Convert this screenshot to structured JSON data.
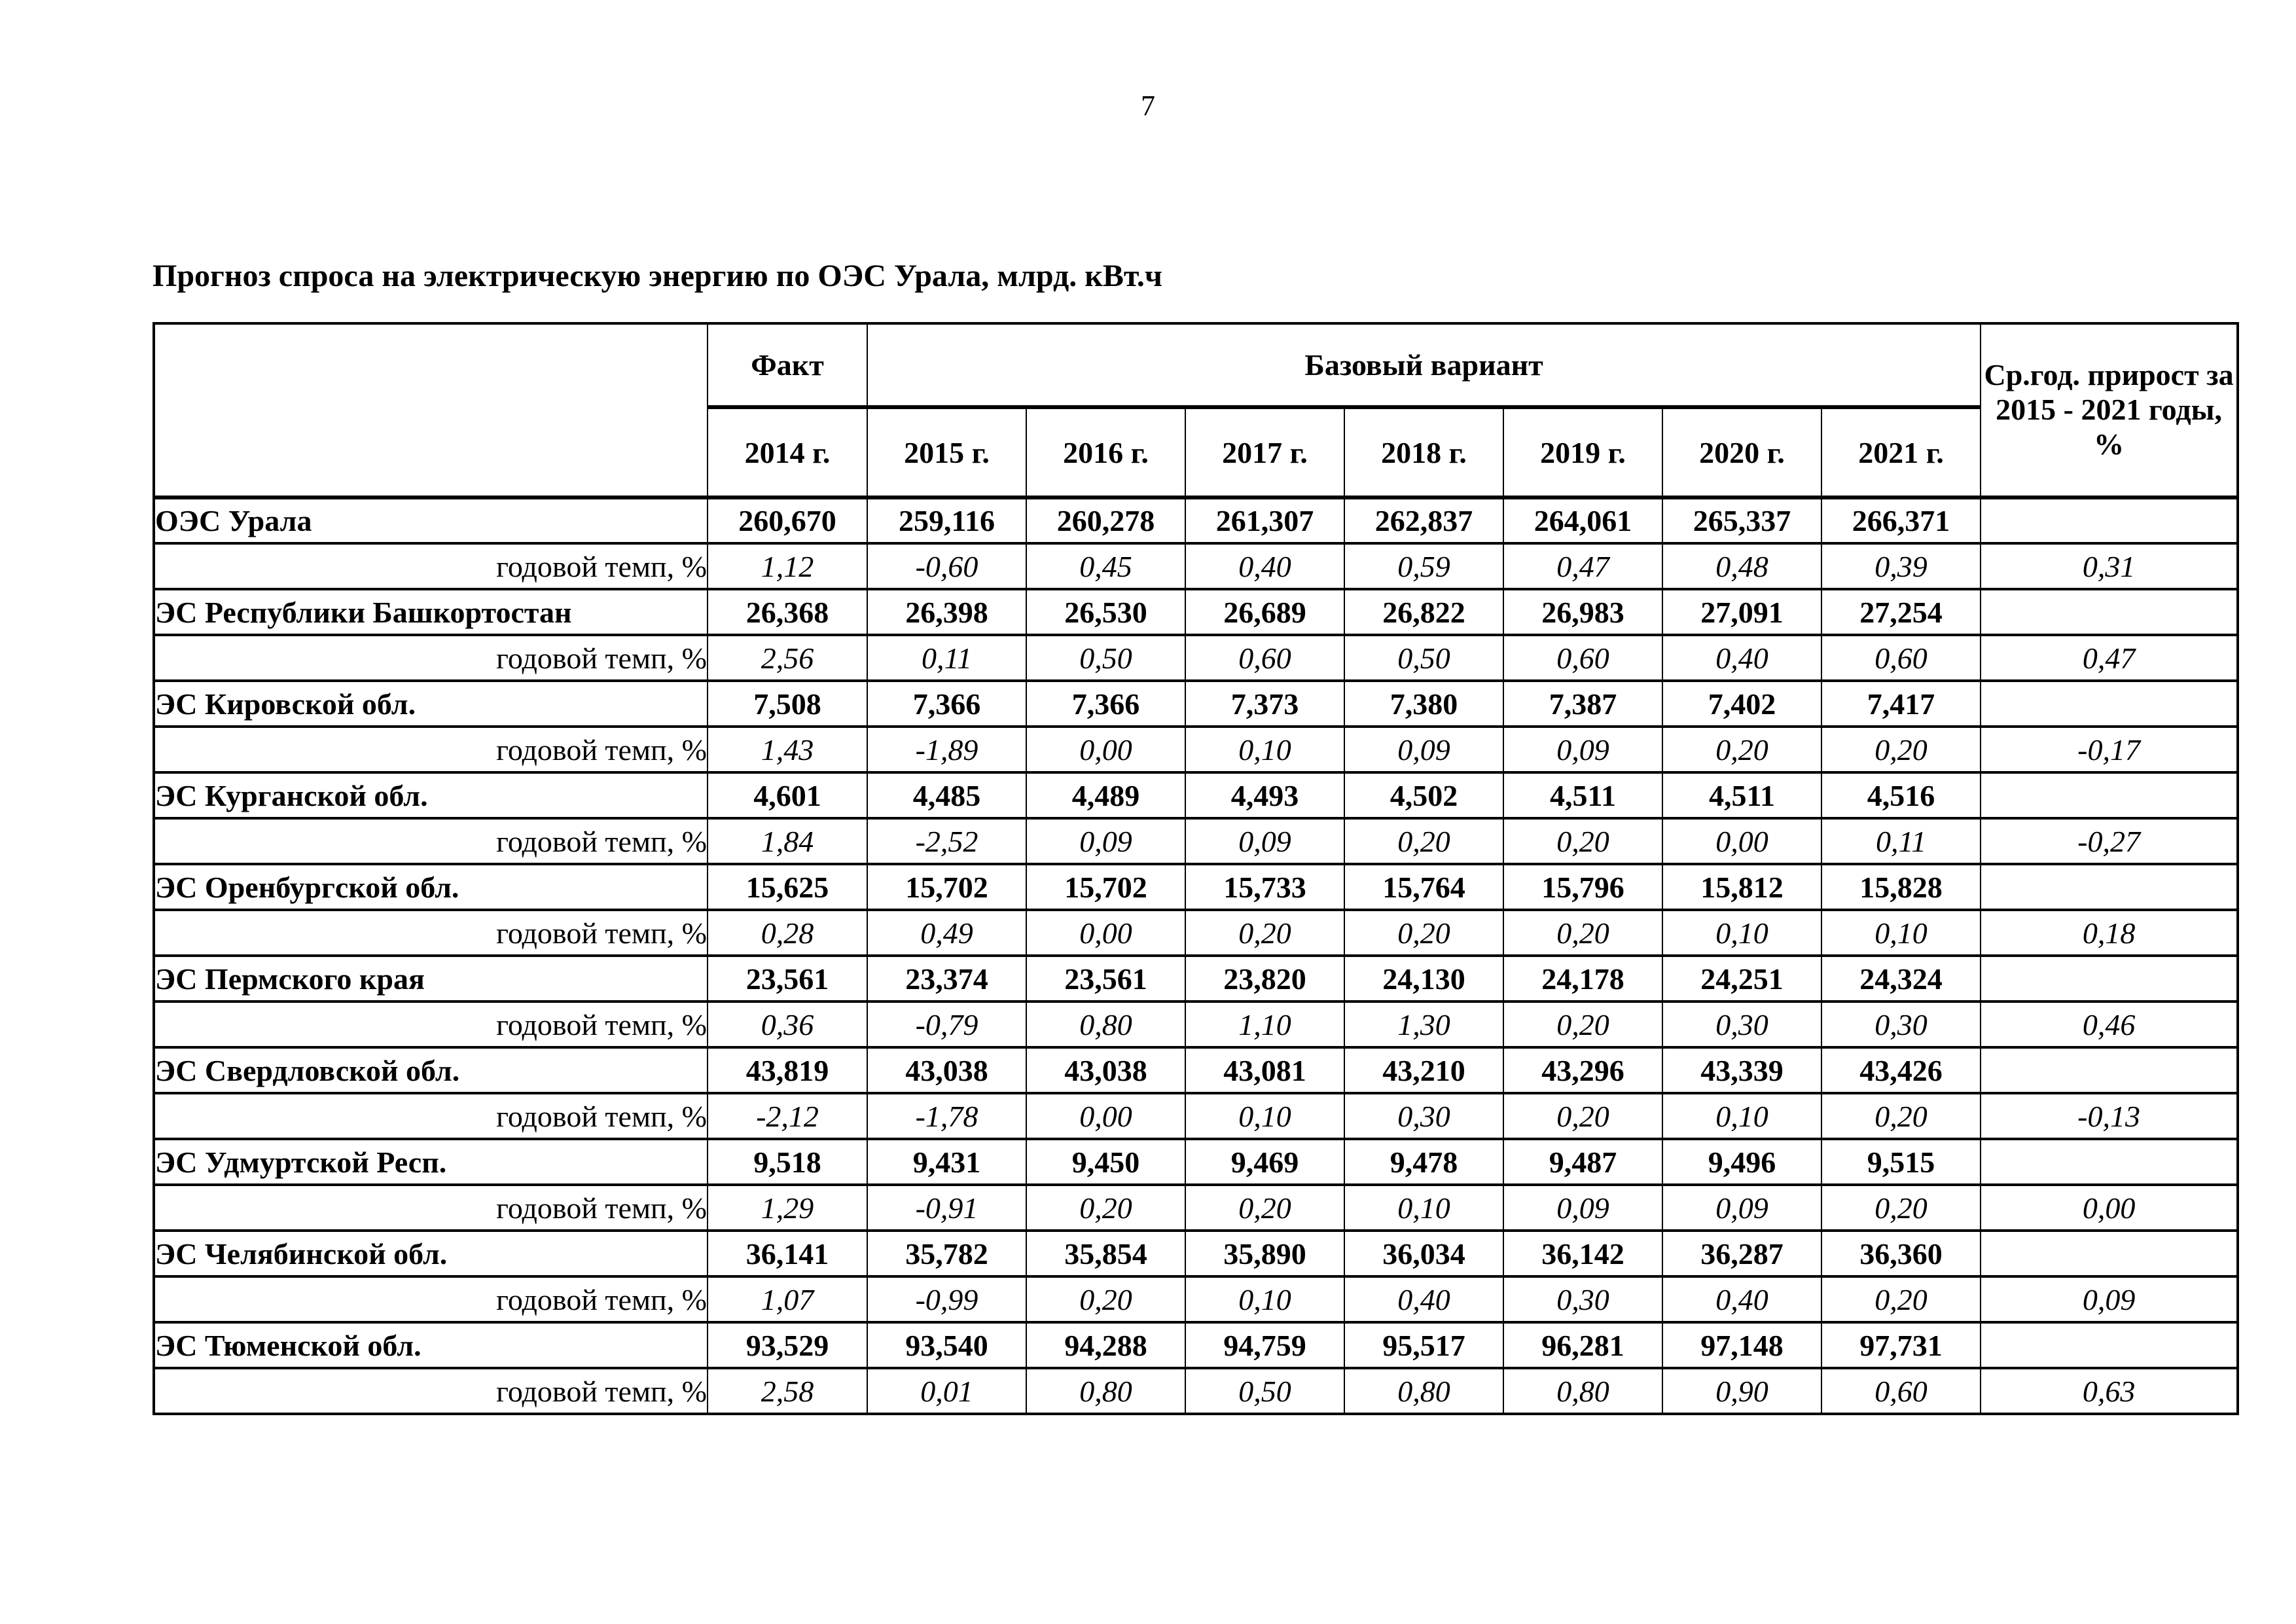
{
  "page": {
    "number": "7"
  },
  "title": "Прогноз спроса на электрическую энергию по ОЭС Урала, млрд. кВт.ч",
  "table": {
    "header": {
      "fact_label": "Факт",
      "base_label": "Базовый вариант",
      "avg_label": "Ср.год. прирост за 2015 - 2021 годы, %",
      "years": [
        "2014 г.",
        "2015 г.",
        "2016 г.",
        "2017 г.",
        "2018 г.",
        "2019 г.",
        "2020 г.",
        "2021 г."
      ]
    },
    "temp_label": "годовой темп, %",
    "rows": [
      {
        "name": "ОЭС Урала",
        "values": [
          "260,670",
          "259,116",
          "260,278",
          "261,307",
          "262,837",
          "264,061",
          "265,337",
          "266,371"
        ],
        "temp": [
          "1,12",
          "-0,60",
          "0,45",
          "0,40",
          "0,59",
          "0,47",
          "0,48",
          "0,39"
        ],
        "temp_avg": "0,31"
      },
      {
        "name": "ЭС Республики Башкортостан",
        "values": [
          "26,368",
          "26,398",
          "26,530",
          "26,689",
          "26,822",
          "26,983",
          "27,091",
          "27,254"
        ],
        "temp": [
          "2,56",
          "0,11",
          "0,50",
          "0,60",
          "0,50",
          "0,60",
          "0,40",
          "0,60"
        ],
        "temp_avg": "0,47"
      },
      {
        "name": "ЭС Кировской обл.",
        "values": [
          "7,508",
          "7,366",
          "7,366",
          "7,373",
          "7,380",
          "7,387",
          "7,402",
          "7,417"
        ],
        "temp": [
          "1,43",
          "-1,89",
          "0,00",
          "0,10",
          "0,09",
          "0,09",
          "0,20",
          "0,20"
        ],
        "temp_avg": "-0,17"
      },
      {
        "name": "ЭС Курганской обл.",
        "values": [
          "4,601",
          "4,485",
          "4,489",
          "4,493",
          "4,502",
          "4,511",
          "4,511",
          "4,516"
        ],
        "temp": [
          "1,84",
          "-2,52",
          "0,09",
          "0,09",
          "0,20",
          "0,20",
          "0,00",
          "0,11"
        ],
        "temp_avg": "-0,27"
      },
      {
        "name": "ЭС Оренбургской обл.",
        "values": [
          "15,625",
          "15,702",
          "15,702",
          "15,733",
          "15,764",
          "15,796",
          "15,812",
          "15,828"
        ],
        "temp": [
          "0,28",
          "0,49",
          "0,00",
          "0,20",
          "0,20",
          "0,20",
          "0,10",
          "0,10"
        ],
        "temp_avg": "0,18"
      },
      {
        "name": "ЭС Пермского края",
        "values": [
          "23,561",
          "23,374",
          "23,561",
          "23,820",
          "24,130",
          "24,178",
          "24,251",
          "24,324"
        ],
        "temp": [
          "0,36",
          "-0,79",
          "0,80",
          "1,10",
          "1,30",
          "0,20",
          "0,30",
          "0,30"
        ],
        "temp_avg": "0,46"
      },
      {
        "name": "ЭС Свердловской обл.",
        "values": [
          "43,819",
          "43,038",
          "43,038",
          "43,081",
          "43,210",
          "43,296",
          "43,339",
          "43,426"
        ],
        "temp": [
          "-2,12",
          "-1,78",
          "0,00",
          "0,10",
          "0,30",
          "0,20",
          "0,10",
          "0,20"
        ],
        "temp_avg": "-0,13"
      },
      {
        "name": "ЭС Удмуртской Респ.",
        "values": [
          "9,518",
          "9,431",
          "9,450",
          "9,469",
          "9,478",
          "9,487",
          "9,496",
          "9,515"
        ],
        "temp": [
          "1,29",
          "-0,91",
          "0,20",
          "0,20",
          "0,10",
          "0,09",
          "0,09",
          "0,20"
        ],
        "temp_avg": "0,00"
      },
      {
        "name": "ЭС Челябинской обл.",
        "values": [
          "36,141",
          "35,782",
          "35,854",
          "35,890",
          "36,034",
          "36,142",
          "36,287",
          "36,360"
        ],
        "temp": [
          "1,07",
          "-0,99",
          "0,20",
          "0,10",
          "0,40",
          "0,30",
          "0,40",
          "0,20"
        ],
        "temp_avg": "0,09"
      },
      {
        "name": "ЭС Тюменской обл.",
        "values": [
          "93,529",
          "93,540",
          "94,288",
          "94,759",
          "95,517",
          "96,281",
          "97,148",
          "97,731"
        ],
        "temp": [
          "2,58",
          "0,01",
          "0,80",
          "0,50",
          "0,80",
          "0,80",
          "0,90",
          "0,60"
        ],
        "temp_avg": "0,63"
      }
    ]
  }
}
